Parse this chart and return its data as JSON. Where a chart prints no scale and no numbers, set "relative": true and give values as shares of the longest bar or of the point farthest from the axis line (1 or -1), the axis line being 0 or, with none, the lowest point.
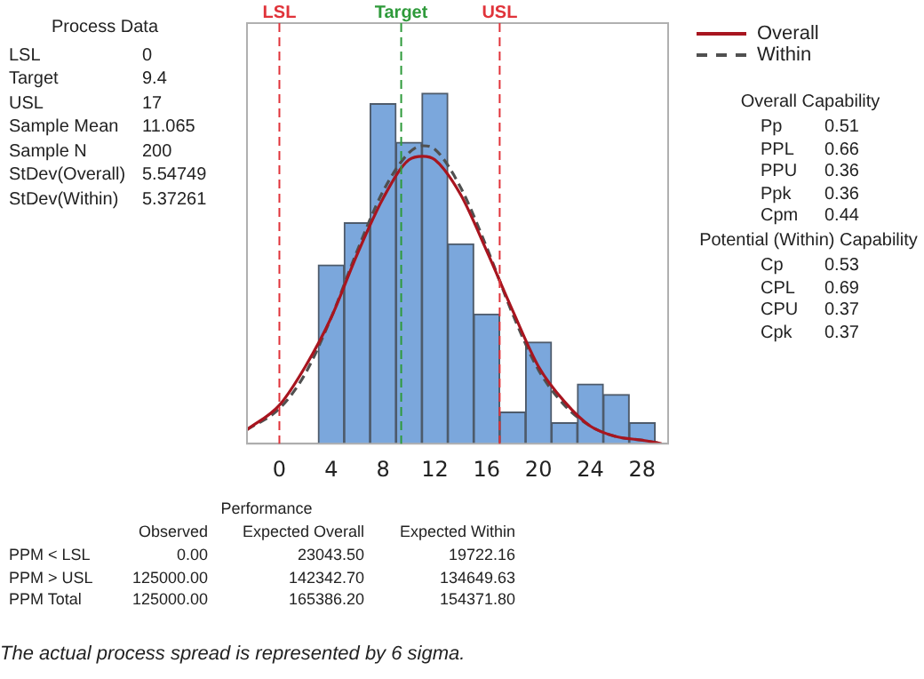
{
  "chart_data": [
    {
      "type": "histogram",
      "relative": true,
      "bins": [
        3,
        5,
        7,
        9,
        11,
        13,
        15,
        17,
        19,
        21,
        23,
        25,
        27,
        29
      ],
      "values": [
        0.51,
        0.63,
        0.97,
        0.86,
        1,
        0.57,
        0.37,
        0.09,
        0.29,
        0.06,
        0.17,
        0.14,
        0.06
      ],
      "color": "#7ba7dc",
      "series": [
        {
          "type": "line",
          "name": "Overall",
          "color": "#a8151f",
          "line_style": "solid",
          "x": [
            -2.5,
            0,
            2,
            4,
            6,
            8,
            10,
            11.065,
            12,
            14,
            16,
            18,
            20,
            22,
            24,
            26,
            28,
            29.5
          ],
          "values": [
            0.04,
            0.11,
            0.22,
            0.36,
            0.54,
            0.7,
            0.81,
            0.82,
            0.81,
            0.71,
            0.55,
            0.38,
            0.22,
            0.12,
            0.05,
            0.02,
            0.01,
            0
          ]
        },
        {
          "type": "line",
          "name": "Within",
          "color": "#505050",
          "line_style": "dashed",
          "x": [
            -2.5,
            0,
            2,
            4,
            6,
            8,
            10,
            11.065,
            12,
            14,
            16,
            18,
            20,
            22,
            24,
            26,
            28,
            29.5
          ],
          "values": [
            0.04,
            0.1,
            0.2,
            0.36,
            0.55,
            0.72,
            0.83,
            0.85,
            0.84,
            0.73,
            0.56,
            0.37,
            0.21,
            0.11,
            0.05,
            0.02,
            0.01,
            0
          ]
        }
      ],
      "xlim": [
        -2.5,
        30
      ],
      "xticks": [
        0,
        4,
        8,
        12,
        16,
        20,
        24,
        28
      ],
      "ref_lines": [
        {
          "axis": "x",
          "value": 0,
          "label": "LSL",
          "color": "#e0333a",
          "line_style": "dashed"
        },
        {
          "axis": "x",
          "value": 9.4,
          "label": "Target",
          "color": "#2e9a3a",
          "line_style": "dashed"
        },
        {
          "axis": "x",
          "value": 17,
          "label": "USL",
          "color": "#e0333a",
          "line_style": "dashed"
        }
      ],
      "marker": "none",
      "grid": false,
      "legend": "right"
    },
    {
      "type": "other",
      "title": "Process Data",
      "categories": [
        "LSL",
        "Target",
        "USL",
        "Sample Mean",
        "Sample N",
        "StDev(Overall)",
        "StDev(Within)"
      ],
      "values": [
        0,
        9.4,
        17,
        11.065,
        200,
        5.54749,
        5.37261
      ],
      "value_labels": [
        "0",
        "9.4",
        "17",
        "11.065",
        "200",
        "5.54749",
        "5.37261"
      ]
    },
    {
      "type": "other",
      "title": "Overall Capability",
      "categories": [
        "Pp",
        "PPL",
        "PPU",
        "Ppk",
        "Cpm"
      ],
      "values": [
        0.51,
        0.66,
        0.36,
        0.36,
        0.44
      ],
      "value_labels": [
        "0.51",
        "0.66",
        "0.36",
        "0.36",
        "0.44"
      ]
    },
    {
      "type": "other",
      "title": "Potential (Within) Capability",
      "categories": [
        "Cp",
        "CPL",
        "CPU",
        "Cpk"
      ],
      "values": [
        0.53,
        0.69,
        0.37,
        0.37
      ],
      "value_labels": [
        "0.53",
        "0.69",
        "0.37",
        "0.37"
      ]
    },
    {
      "type": "other",
      "title": "Performance",
      "categories": [
        "PPM < LSL",
        "PPM > USL",
        "PPM Total"
      ],
      "series": [
        {
          "name": "Observed",
          "values": [
            0,
            125000,
            125000
          ],
          "value_labels": [
            "0.00",
            "125000.00",
            "125000.00"
          ]
        },
        {
          "name": "Expected Overall",
          "values": [
            23043.5,
            142342.7,
            165386.2
          ],
          "value_labels": [
            "23043.50",
            "142342.70",
            "165386.20"
          ]
        },
        {
          "name": "Expected Within",
          "values": [
            19722.16,
            134649.63,
            154371.8
          ],
          "value_labels": [
            "19722.16",
            "134649.63",
            "154371.80"
          ]
        }
      ],
      "annotations": [
        "The actual process spread is represented by 6 sigma."
      ]
    }
  ]
}
